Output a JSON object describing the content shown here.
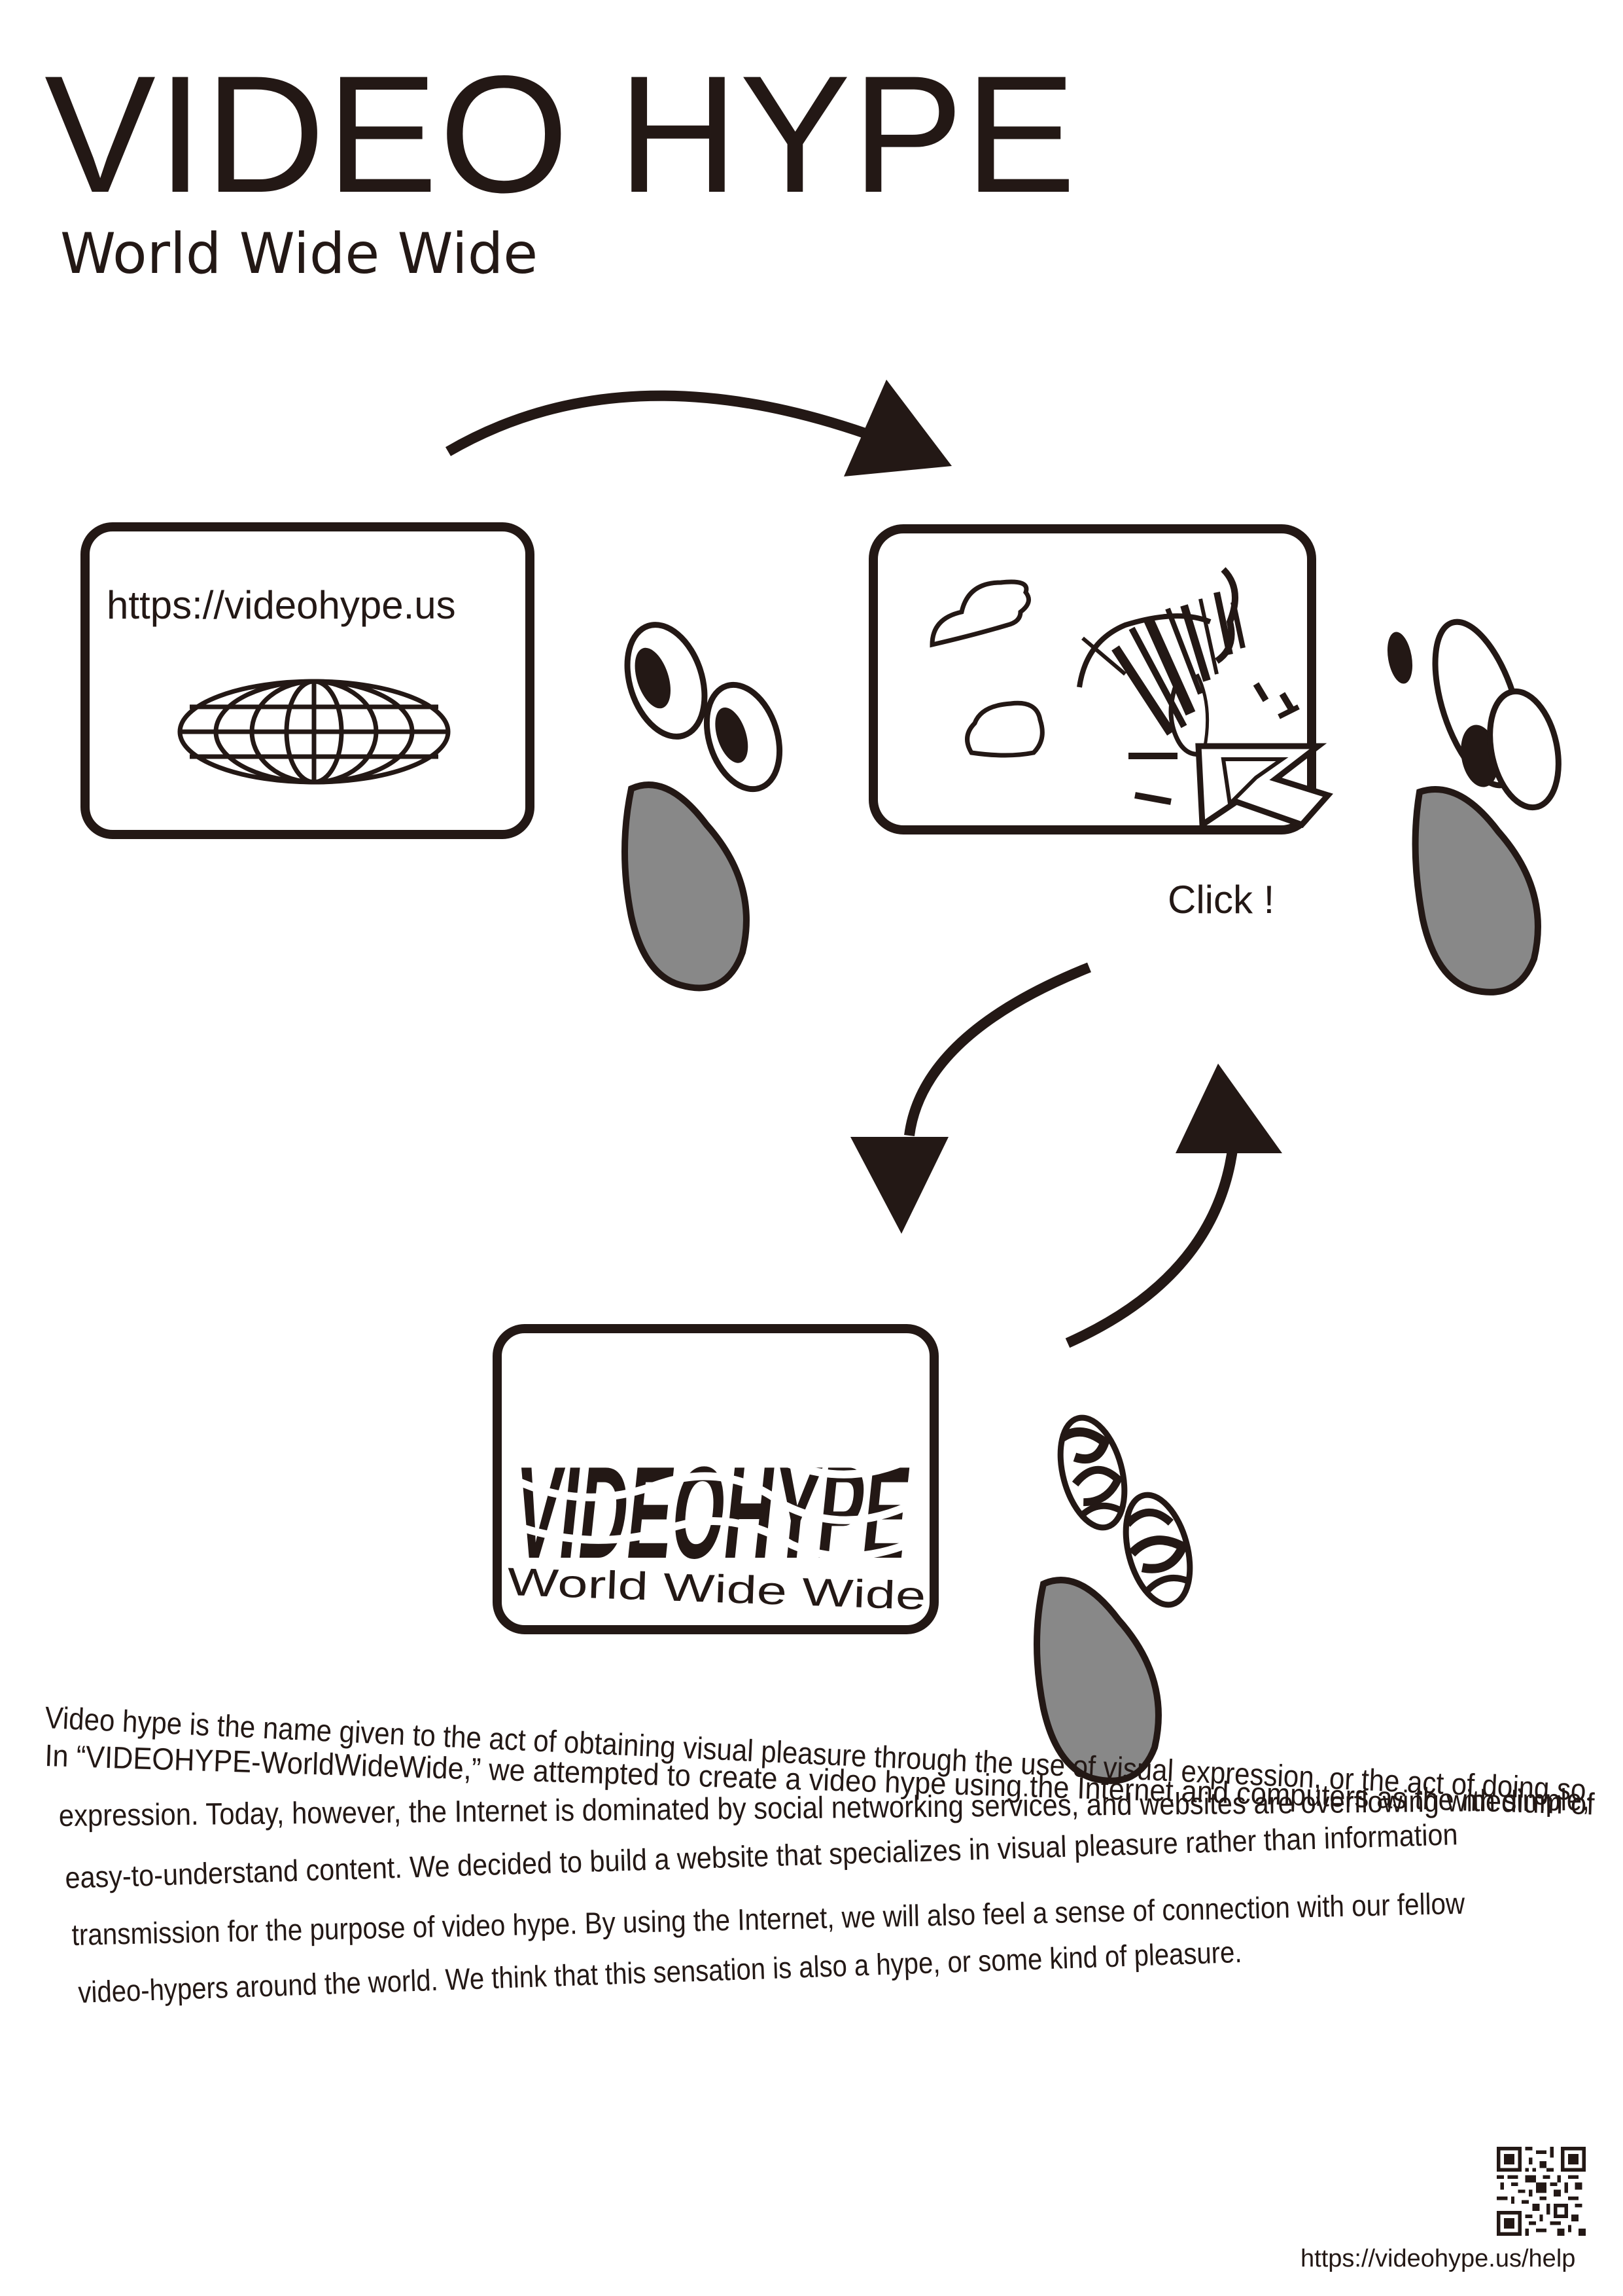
{
  "poster": {
    "title": "VIDEO HYPE",
    "subtitle": "World Wide Wide"
  },
  "diagram": {
    "step1": {
      "url_text": "https://videohype.us",
      "icon": "globe-icon"
    },
    "step2": {
      "click_label": "Click !",
      "icon": "cursor-arrow-icon"
    },
    "step3": {
      "logo_text": "VIDEOHYPE",
      "logo_subtext": "World Wide Wide"
    },
    "viewer_icon": "face-icon"
  },
  "description": {
    "lines": [
      "Video hype is the name given to the act of obtaining visual pleasure through the use of visual expression, or the act of doing so.",
      "In “VIDEOHYPE-WorldWideWide,”  we attempted to create a video hype using the Internet and computers as the medium of",
      "expression. Today, however, the Internet is dominated by social networking services, and websites are overflowing with simple,",
      "easy-to-understand content. We decided to build a website that specializes in visual pleasure rather than information",
      "transmission for the purpose of video hype. By using the Internet, we will also feel a sense of connection with our fellow",
      "video-hypers around the world. We think that this sensation is also a hype, or some kind of pleasure."
    ]
  },
  "footer": {
    "help_url": "https://videohype.us/help",
    "qr_icon": "qr-code-icon"
  },
  "colors": {
    "ink": "#231815",
    "face_gray": "#888888",
    "background": "#ffffff"
  }
}
